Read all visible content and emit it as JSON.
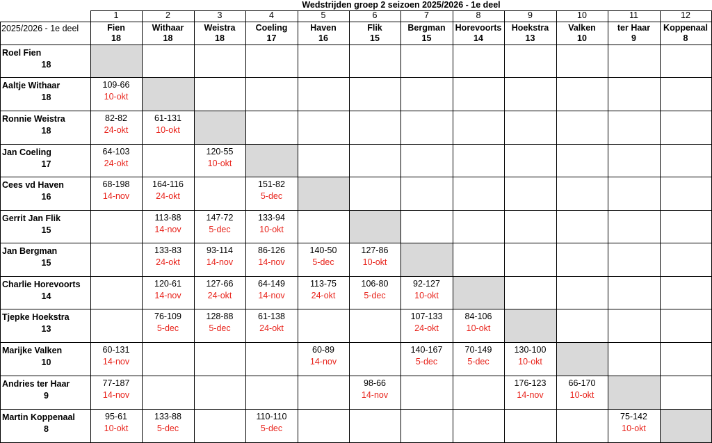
{
  "title": "Wedstrijden groep 2 seizoen 2025/2026 - 1e deel",
  "corner_label": "2025/2026 - 1e deel",
  "columns": [
    {
      "num": "1",
      "name": "Fien",
      "points": "18"
    },
    {
      "num": "2",
      "name": "Withaar",
      "points": "18"
    },
    {
      "num": "3",
      "name": "Weistra",
      "points": "18"
    },
    {
      "num": "4",
      "name": "Coeling",
      "points": "17"
    },
    {
      "num": "5",
      "name": "Haven",
      "points": "16"
    },
    {
      "num": "6",
      "name": "Flik",
      "points": "15"
    },
    {
      "num": "7",
      "name": "Bergman",
      "points": "15"
    },
    {
      "num": "8",
      "name": "Horevoorts",
      "points": "14"
    },
    {
      "num": "9",
      "name": "Hoekstra",
      "points": "13"
    },
    {
      "num": "10",
      "name": "Valken",
      "points": "10"
    },
    {
      "num": "11",
      "name": "ter Haar",
      "points": "9"
    },
    {
      "num": "12",
      "name": "Koppenaal",
      "points": "8"
    }
  ],
  "rows": [
    {
      "name": "Roel Fien",
      "points": "18",
      "cells": [
        null,
        null,
        null,
        null,
        null,
        null,
        null,
        null,
        null,
        null,
        null,
        null
      ]
    },
    {
      "name": "Aaltje Withaar",
      "points": "18",
      "cells": [
        {
          "score": "109-66",
          "date": "10-okt"
        },
        null,
        null,
        null,
        null,
        null,
        null,
        null,
        null,
        null,
        null,
        null
      ]
    },
    {
      "name": "Ronnie Weistra",
      "points": "18",
      "cells": [
        {
          "score": "82-82",
          "date": "24-okt"
        },
        {
          "score": "61-131",
          "date": "10-okt"
        },
        null,
        null,
        null,
        null,
        null,
        null,
        null,
        null,
        null,
        null
      ]
    },
    {
      "name": "Jan Coeling",
      "points": "17",
      "cells": [
        {
          "score": "64-103",
          "date": "24-okt"
        },
        null,
        {
          "score": "120-55",
          "date": "10-okt"
        },
        null,
        null,
        null,
        null,
        null,
        null,
        null,
        null,
        null
      ]
    },
    {
      "name": "Cees vd Haven",
      "points": "16",
      "cells": [
        {
          "score": "68-198",
          "date": "14-nov"
        },
        {
          "score": "164-116",
          "date": "24-okt"
        },
        null,
        {
          "score": "151-82",
          "date": "5-dec"
        },
        null,
        null,
        null,
        null,
        null,
        null,
        null,
        null
      ]
    },
    {
      "name": "Gerrit Jan Flik",
      "points": "15",
      "cells": [
        null,
        {
          "score": "113-88",
          "date": "14-nov"
        },
        {
          "score": "147-72",
          "date": "5-dec"
        },
        {
          "score": "133-94",
          "date": "10-okt"
        },
        null,
        null,
        null,
        null,
        null,
        null,
        null,
        null
      ]
    },
    {
      "name": "Jan Bergman",
      "points": "15",
      "cells": [
        null,
        {
          "score": "133-83",
          "date": "24-okt"
        },
        {
          "score": "93-114",
          "date": "14-nov"
        },
        {
          "score": "86-126",
          "date": "14-nov"
        },
        {
          "score": "140-50",
          "date": "5-dec"
        },
        {
          "score": "127-86",
          "date": "10-okt"
        },
        null,
        null,
        null,
        null,
        null,
        null
      ]
    },
    {
      "name": "Charlie Horevoorts",
      "points": "14",
      "cells": [
        null,
        {
          "score": "120-61",
          "date": "14-nov"
        },
        {
          "score": "127-66",
          "date": "24-okt"
        },
        {
          "score": "64-149",
          "date": "14-nov"
        },
        {
          "score": "113-75",
          "date": "24-okt"
        },
        {
          "score": "106-80",
          "date": "5-dec"
        },
        {
          "score": "92-127",
          "date": "10-okt"
        },
        null,
        null,
        null,
        null,
        null
      ]
    },
    {
      "name": "Tjepke Hoekstra",
      "points": "13",
      "cells": [
        null,
        {
          "score": "76-109",
          "date": "5-dec"
        },
        {
          "score": "128-88",
          "date": "5-dec"
        },
        {
          "score": "61-138",
          "date": "24-okt"
        },
        null,
        null,
        {
          "score": "107-133",
          "date": "24-okt"
        },
        {
          "score": "84-106",
          "date": "10-okt"
        },
        null,
        null,
        null,
        null
      ]
    },
    {
      "name": "Marijke Valken",
      "points": "10",
      "cells": [
        {
          "score": "60-131",
          "date": "14-nov"
        },
        null,
        null,
        null,
        {
          "score": "60-89",
          "date": "14-nov"
        },
        null,
        {
          "score": "140-167",
          "date": "5-dec"
        },
        {
          "score": "70-149",
          "date": "5-dec"
        },
        {
          "score": "130-100",
          "date": "10-okt"
        },
        null,
        null,
        null
      ]
    },
    {
      "name": "Andries ter Haar",
      "points": "9",
      "cells": [
        {
          "score": "77-187",
          "date": "14-nov"
        },
        null,
        null,
        null,
        null,
        {
          "score": "98-66",
          "date": "14-nov"
        },
        null,
        null,
        {
          "score": "176-123",
          "date": "14-nov"
        },
        {
          "score": "66-170",
          "date": "10-okt"
        },
        null,
        null
      ]
    },
    {
      "name": "Martin Koppenaal",
      "points": "8",
      "cells": [
        {
          "score": "95-61",
          "date": "10-okt"
        },
        {
          "score": "133-88",
          "date": "5-dec"
        },
        null,
        {
          "score": "110-110",
          "date": "5-dec"
        },
        null,
        null,
        null,
        null,
        null,
        null,
        {
          "score": "75-142",
          "date": "10-okt"
        },
        null
      ]
    }
  ],
  "colors": {
    "date": "#e8231b",
    "diagonal": "#d9d9d9",
    "grid": "#000000"
  }
}
